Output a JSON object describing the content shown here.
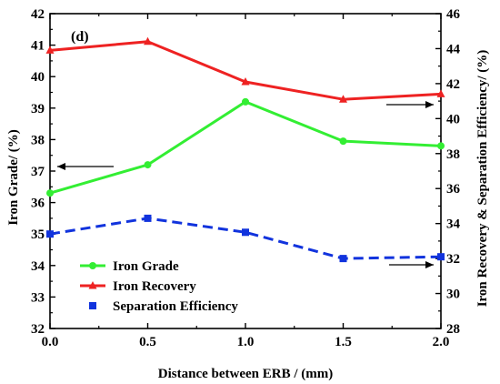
{
  "chart_data": {
    "type": "line",
    "panel_label": "(d)",
    "xlabel": "Distance between ERB  / (mm)",
    "ylabel_left": "Iron Grade/ (%)",
    "ylabel_right": "Iron Recovery & Separation Efficiency/ (%)",
    "xlim": [
      0.0,
      2.0
    ],
    "ylim_left": [
      32,
      42
    ],
    "ylim_right": [
      28,
      46
    ],
    "x_ticks": [
      "0.0",
      "0.5",
      "1.0",
      "1.5",
      "2.0"
    ],
    "y_left_ticks": [
      "32",
      "33",
      "34",
      "35",
      "36",
      "37",
      "38",
      "39",
      "40",
      "41",
      "42"
    ],
    "y_right_ticks": [
      "28",
      "30",
      "32",
      "34",
      "36",
      "38",
      "40",
      "42",
      "44",
      "46"
    ],
    "x": [
      0.0,
      0.5,
      1.0,
      1.5,
      2.0
    ],
    "series": [
      {
        "name": "Iron Grade",
        "axis": "left",
        "color": "#33ee33",
        "marker": "circle",
        "line_style": "solid",
        "values": [
          36.3,
          37.2,
          39.2,
          37.95,
          37.8
        ]
      },
      {
        "name": "Iron Recovery",
        "axis": "right",
        "color": "#ee2222",
        "marker": "triangle",
        "line_style": "solid",
        "values": [
          43.9,
          44.4,
          42.1,
          41.1,
          41.4
        ]
      },
      {
        "name": "Separation Efficiency",
        "axis": "right",
        "color": "#1133dd",
        "marker": "square",
        "line_style": "dashed",
        "values": [
          33.4,
          34.3,
          33.5,
          32.0,
          32.1
        ]
      }
    ],
    "legend_position": "bottom-left",
    "grid": false
  }
}
